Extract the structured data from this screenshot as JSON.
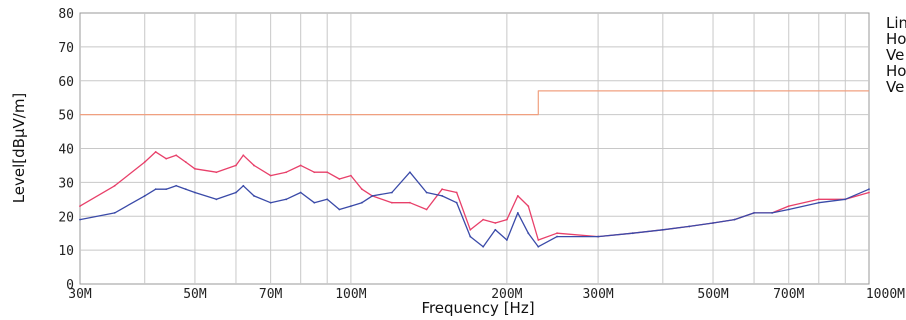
{
  "chart_data": {
    "type": "line",
    "title": "",
    "xlabel": "Frequency [Hz]",
    "ylabel": "Level[dBμV/m]",
    "x_scale": "log",
    "xlim": [
      30,
      1000
    ],
    "ylim": [
      0,
      80
    ],
    "grid": true,
    "legend_position": "right, cut off by image edge",
    "x_tick_labels": [
      {
        "label": "30M",
        "value": 30
      },
      {
        "label": "50M",
        "value": 50
      },
      {
        "label": "70M",
        "value": 70
      },
      {
        "label": "100M",
        "value": 100
      },
      {
        "label": "200M",
        "value": 200
      },
      {
        "label": "300M",
        "value": 300
      },
      {
        "label": "500M",
        "value": 500
      },
      {
        "label": "700M",
        "value": 700
      },
      {
        "label": "1000M",
        "value": 1000
      }
    ],
    "y_ticks": [
      0,
      10,
      20,
      30,
      40,
      50,
      60,
      70,
      80
    ],
    "legend_entries": [
      "Lin",
      "Ho",
      "Ve",
      "Ho",
      "Ve"
    ],
    "series": [
      {
        "name": "Lin",
        "color": "#f0a080",
        "x": [
          30,
          230,
          230,
          1000
        ],
        "values": [
          50,
          50,
          57,
          57
        ]
      },
      {
        "name": "",
        "color": "#e8406a",
        "x": [
          30,
          35,
          40,
          42,
          44,
          46,
          48,
          50,
          55,
          60,
          62,
          65,
          70,
          75,
          80,
          85,
          90,
          95,
          100,
          105,
          110,
          120,
          130,
          140,
          150,
          160,
          170,
          180,
          190,
          200,
          210,
          220,
          230,
          250,
          300,
          350,
          400,
          450,
          500,
          550,
          600,
          650,
          700,
          800,
          900,
          1000
        ],
        "values": [
          23,
          29,
          36,
          39,
          37,
          38,
          36,
          34,
          33,
          35,
          38,
          35,
          32,
          33,
          35,
          33,
          33,
          31,
          32,
          28,
          26,
          24,
          24,
          22,
          28,
          27,
          16,
          19,
          18,
          19,
          26,
          23,
          13,
          15,
          14,
          15,
          16,
          17,
          18,
          19,
          21,
          21,
          23,
          25,
          25,
          27
        ]
      },
      {
        "name": "",
        "color": "#3a4aa8",
        "x": [
          30,
          35,
          40,
          42,
          44,
          46,
          48,
          50,
          55,
          60,
          62,
          65,
          70,
          75,
          80,
          85,
          90,
          95,
          100,
          105,
          110,
          120,
          130,
          140,
          150,
          160,
          170,
          180,
          190,
          200,
          210,
          220,
          230,
          250,
          300,
          350,
          400,
          450,
          500,
          550,
          600,
          650,
          700,
          800,
          900,
          1000
        ],
        "values": [
          19,
          21,
          26,
          28,
          28,
          29,
          28,
          27,
          25,
          27,
          29,
          26,
          24,
          25,
          27,
          24,
          25,
          22,
          23,
          24,
          26,
          27,
          33,
          27,
          26,
          24,
          14,
          11,
          16,
          13,
          21,
          15,
          11,
          14,
          14,
          15,
          16,
          17,
          18,
          19,
          21,
          21,
          22,
          24,
          25,
          28
        ]
      }
    ]
  }
}
